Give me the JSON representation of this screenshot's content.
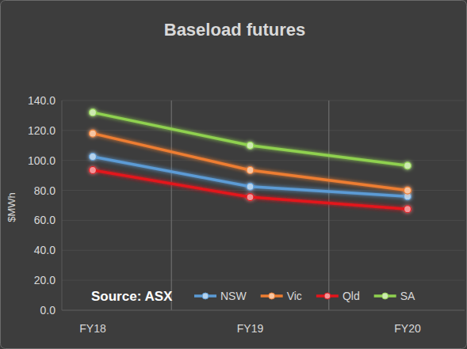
{
  "chart_data": {
    "type": "line",
    "title": "Baseload futures",
    "y_label": "$MWh",
    "annotation": "Source: ASX",
    "categories": [
      "FY18",
      "FY19",
      "FY20"
    ],
    "series": [
      {
        "name": "NSW",
        "color": "#5b9bd5",
        "values": [
          102.5,
          82.5,
          76
        ]
      },
      {
        "name": "Vic",
        "color": "#ed7d31",
        "values": [
          118,
          93.5,
          80
        ]
      },
      {
        "name": "Qld",
        "color": "#e3141b",
        "values": [
          93.5,
          75.5,
          67.5
        ]
      },
      {
        "name": "SA",
        "color": "#8fd14f",
        "values": [
          132,
          110,
          96.5
        ]
      }
    ],
    "ylim": [
      0,
      140
    ],
    "yticks": [
      {
        "value": 0,
        "label": "0.0"
      },
      {
        "value": 20,
        "label": "20.0"
      },
      {
        "value": 40,
        "label": "40.0"
      },
      {
        "value": 60,
        "label": "60.0"
      },
      {
        "value": 80,
        "label": "80.0"
      },
      {
        "value": 100,
        "label": "100.0"
      },
      {
        "value": 120,
        "label": "120.0"
      },
      {
        "value": 140,
        "label": "140.0"
      }
    ],
    "grid": true,
    "legend": "bottom",
    "marker": "circle",
    "line_style": "solid"
  }
}
